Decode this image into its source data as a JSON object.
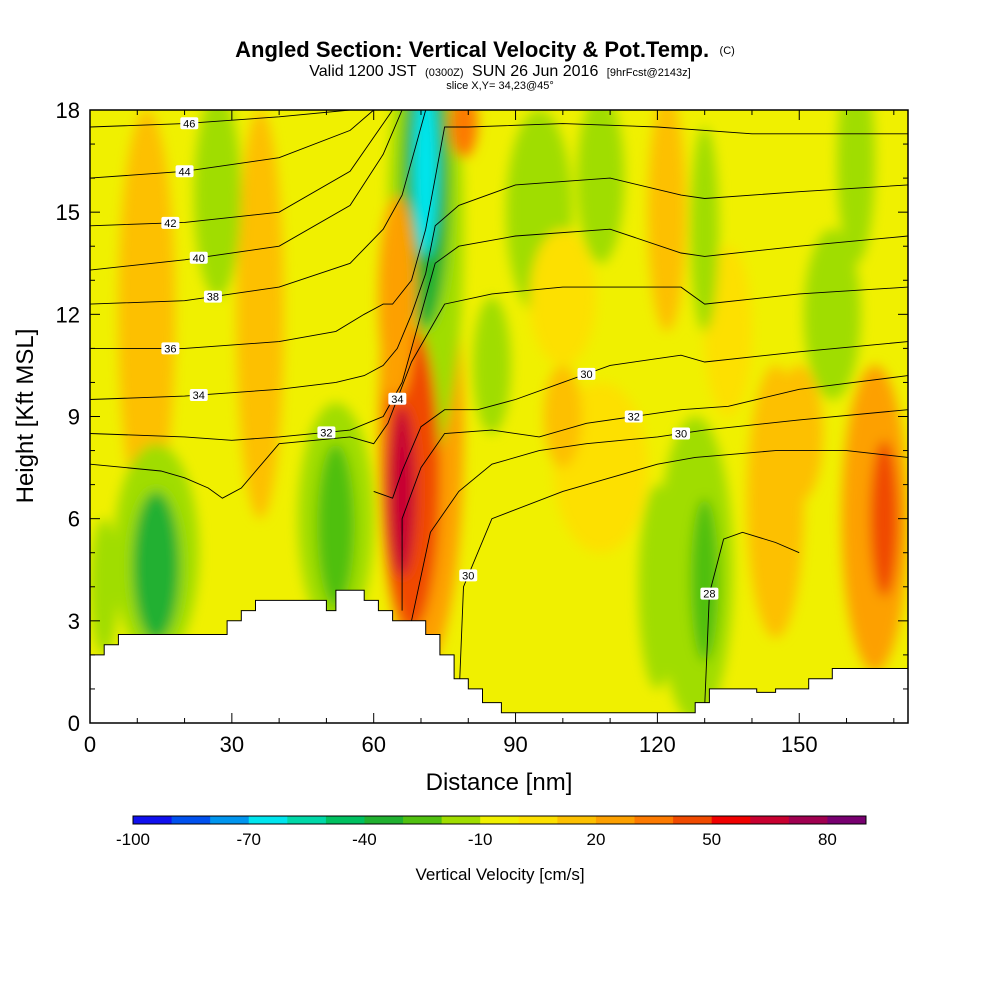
{
  "title": {
    "main": "Angled Section: Vertical Velocity & Pot.Temp.",
    "main_unit": "(C)",
    "valid_prefix": "Valid 1200 JST",
    "valid_z": "(0300Z)",
    "valid_date": "SUN 26 Jun 2016",
    "forecast": "[9hrFcst@2143z]",
    "slice": "slice X,Y= 34,23@45°"
  },
  "chart_data": {
    "type": "heatmap",
    "xlabel": "Distance [nm]",
    "ylabel": "Height [Kft MSL]",
    "xlim": [
      0,
      173
    ],
    "ylim": [
      0,
      18
    ],
    "x_ticks": [
      0,
      30,
      60,
      90,
      120,
      150
    ],
    "y_ticks": [
      0,
      3,
      6,
      9,
      12,
      15,
      18
    ],
    "terrain": [
      [
        0,
        2.0
      ],
      [
        3,
        2.0
      ],
      [
        3,
        2.3
      ],
      [
        6,
        2.3
      ],
      [
        6,
        2.6
      ],
      [
        29,
        2.6
      ],
      [
        29,
        3.0
      ],
      [
        32,
        3.0
      ],
      [
        32,
        3.3
      ],
      [
        35,
        3.3
      ],
      [
        35,
        3.6
      ],
      [
        50,
        3.6
      ],
      [
        50,
        3.3
      ],
      [
        52,
        3.3
      ],
      [
        52,
        3.9
      ],
      [
        58,
        3.9
      ],
      [
        58,
        3.6
      ],
      [
        61,
        3.6
      ],
      [
        61,
        3.3
      ],
      [
        64,
        3.3
      ],
      [
        64,
        3.0
      ],
      [
        71,
        3.0
      ],
      [
        71,
        2.6
      ],
      [
        74,
        2.6
      ],
      [
        74,
        2.0
      ],
      [
        77,
        2.0
      ],
      [
        77,
        1.3
      ],
      [
        80,
        1.3
      ],
      [
        80,
        1.0
      ],
      [
        83,
        1.0
      ],
      [
        83,
        0.6
      ],
      [
        87,
        0.6
      ],
      [
        87,
        0.3
      ],
      [
        128,
        0.3
      ],
      [
        128,
        0.6
      ],
      [
        131,
        0.6
      ],
      [
        131,
        1.0
      ],
      [
        141,
        1.0
      ],
      [
        141,
        0.9
      ],
      [
        145,
        0.9
      ],
      [
        145,
        1.0
      ],
      [
        152,
        1.0
      ],
      [
        152,
        1.3
      ],
      [
        157,
        1.3
      ],
      [
        157,
        1.6
      ],
      [
        173,
        1.6
      ]
    ],
    "vertical_velocity_features": [
      {
        "x": 66,
        "y": 6.8,
        "rx": 3,
        "ry": 2.5,
        "value": 60
      },
      {
        "x": 68,
        "y": 7.2,
        "rx": 6,
        "ry": 4.5,
        "value": 45
      },
      {
        "x": 70,
        "y": 8.5,
        "rx": 9,
        "ry": 7,
        "value": 25
      },
      {
        "x": 65,
        "y": 12.5,
        "rx": 4,
        "ry": 3,
        "value": 25
      },
      {
        "x": 71,
        "y": 16.3,
        "rx": 2.5,
        "ry": 2.6,
        "value": -70
      },
      {
        "x": 71,
        "y": 15.8,
        "rx": 5,
        "ry": 4.2,
        "value": -40
      },
      {
        "x": 71,
        "y": 14.5,
        "rx": 8,
        "ry": 7,
        "value": -15
      },
      {
        "x": 79,
        "y": 17.6,
        "rx": 3,
        "ry": 1,
        "value": 35
      },
      {
        "x": 14,
        "y": 4.6,
        "rx": 5,
        "ry": 2.2,
        "value": -35
      },
      {
        "x": 14,
        "y": 5.0,
        "rx": 9,
        "ry": 3.2,
        "value": -20
      },
      {
        "x": 52,
        "y": 5.8,
        "rx": 4,
        "ry": 2.4,
        "value": -30
      },
      {
        "x": 52,
        "y": 6.0,
        "rx": 8,
        "ry": 3.4,
        "value": -15
      },
      {
        "x": 130,
        "y": 4.2,
        "rx": 3,
        "ry": 2.4,
        "value": -30
      },
      {
        "x": 128,
        "y": 4.5,
        "rx": 8,
        "ry": 4.5,
        "value": -15
      },
      {
        "x": 168,
        "y": 6.0,
        "rx": 3,
        "ry": 2.3,
        "value": 45
      },
      {
        "x": 166,
        "y": 6.0,
        "rx": 7,
        "ry": 4.5,
        "value": 25
      },
      {
        "x": 145,
        "y": 6.5,
        "rx": 6,
        "ry": 4,
        "value": 18
      },
      {
        "x": 27,
        "y": 15.5,
        "rx": 5,
        "ry": 3,
        "value": -20
      },
      {
        "x": 12,
        "y": 12,
        "rx": 6,
        "ry": 6,
        "value": 12
      },
      {
        "x": 36,
        "y": 12,
        "rx": 5,
        "ry": 6,
        "value": 12
      },
      {
        "x": 95,
        "y": 15,
        "rx": 7,
        "ry": 3,
        "value": -12
      },
      {
        "x": 108,
        "y": 16,
        "rx": 5,
        "ry": 2.5,
        "value": -12
      },
      {
        "x": 122,
        "y": 15,
        "rx": 4,
        "ry": 3.5,
        "value": 12
      },
      {
        "x": 130,
        "y": 14.5,
        "rx": 3,
        "ry": 3,
        "value": -15
      },
      {
        "x": 157,
        "y": 12,
        "rx": 6,
        "ry": 2.5,
        "value": -15
      },
      {
        "x": 162,
        "y": 16.5,
        "rx": 4,
        "ry": 3,
        "value": -12
      },
      {
        "x": 120,
        "y": 4,
        "rx": 4,
        "ry": 3,
        "value": -12
      },
      {
        "x": 100,
        "y": 9,
        "rx": 4,
        "ry": 1.5,
        "value": 12
      },
      {
        "x": 85,
        "y": 10.5,
        "rx": 4,
        "ry": 2,
        "value": -12
      },
      {
        "x": 108,
        "y": 7.5,
        "rx": 10,
        "ry": 2.5,
        "value": 8
      },
      {
        "x": 150,
        "y": 8.5,
        "rx": 5,
        "ry": 2,
        "value": 10
      },
      {
        "x": 135,
        "y": 11.5,
        "rx": 5,
        "ry": 2.5,
        "value": 8
      },
      {
        "x": 3,
        "y": 4,
        "rx": 3,
        "ry": 2,
        "value": -15
      },
      {
        "x": 100,
        "y": 12.5,
        "rx": 7,
        "ry": 2,
        "value": 8
      }
    ],
    "theta_contours": [
      {
        "level": 46,
        "points": [
          [
            0,
            17.5
          ],
          [
            20,
            17.6
          ],
          [
            40,
            17.8
          ],
          [
            55,
            18.0
          ]
        ],
        "label_x": 21
      },
      {
        "level": 44,
        "points": [
          [
            0,
            16.0
          ],
          [
            20,
            16.2
          ],
          [
            40,
            16.6
          ],
          [
            55,
            17.4
          ],
          [
            60,
            18.0
          ]
        ],
        "label_x": 20
      },
      {
        "level": 42,
        "points": [
          [
            0,
            14.6
          ],
          [
            20,
            14.7
          ],
          [
            40,
            15.0
          ],
          [
            55,
            16.2
          ],
          [
            62,
            17.6
          ],
          [
            64,
            18.0
          ]
        ],
        "label_x": 17
      },
      {
        "level": 40,
        "points": [
          [
            0,
            13.3
          ],
          [
            20,
            13.6
          ],
          [
            40,
            14.0
          ],
          [
            55,
            15.2
          ],
          [
            62,
            16.7
          ],
          [
            66,
            18.0
          ]
        ],
        "label_x": 23
      },
      {
        "level": 38,
        "points": [
          [
            0,
            12.3
          ],
          [
            20,
            12.4
          ],
          [
            40,
            12.8
          ],
          [
            55,
            13.5
          ],
          [
            62,
            14.5
          ],
          [
            66,
            15.5
          ],
          [
            69,
            17.0
          ],
          [
            71,
            18.0
          ]
        ],
        "label_x": 26
      },
      {
        "level": 36,
        "points": [
          [
            0,
            11.0
          ],
          [
            20,
            11.0
          ],
          [
            40,
            11.2
          ],
          [
            52,
            11.5
          ],
          [
            58,
            12.0
          ],
          [
            62,
            12.3
          ],
          [
            64,
            12.3
          ],
          [
            68,
            13.0
          ],
          [
            71,
            14.5
          ],
          [
            73,
            16.0
          ],
          [
            75,
            17.5
          ],
          [
            80,
            17.5
          ],
          [
            100,
            17.6
          ],
          [
            120,
            17.5
          ],
          [
            140,
            17.3
          ],
          [
            173,
            17.3
          ]
        ],
        "label_x": 17
      },
      {
        "level": 34,
        "points": [
          [
            0,
            9.5
          ],
          [
            20,
            9.6
          ],
          [
            40,
            9.8
          ],
          [
            52,
            10.0
          ],
          [
            58,
            10.2
          ],
          [
            62,
            10.5
          ],
          [
            65,
            11.0
          ],
          [
            68,
            12.0
          ],
          [
            71,
            13.2
          ],
          [
            73,
            14.6
          ],
          [
            78,
            15.2
          ],
          [
            90,
            15.8
          ],
          [
            110,
            16.0
          ],
          [
            125,
            15.5
          ],
          [
            130,
            15.4
          ],
          [
            150,
            15.6
          ],
          [
            173,
            15.8
          ]
        ],
        "label_x": 23
      },
      {
        "level": 32,
        "points": [
          [
            0,
            8.5
          ],
          [
            20,
            8.4
          ],
          [
            30,
            8.3
          ],
          [
            40,
            8.4
          ],
          [
            55,
            8.6
          ],
          [
            62,
            9.0
          ],
          [
            66,
            10.0
          ],
          [
            70,
            12.0
          ],
          [
            73,
            13.5
          ],
          [
            78,
            14.0
          ],
          [
            90,
            14.3
          ],
          [
            110,
            14.5
          ],
          [
            125,
            13.8
          ],
          [
            130,
            13.7
          ],
          [
            150,
            14.0
          ],
          [
            173,
            14.3
          ]
        ],
        "label_x": 50
      },
      {
        "level": 34,
        "points": [
          [
            0,
            7.6
          ],
          [
            15,
            7.4
          ],
          [
            20,
            7.2
          ],
          [
            25,
            6.9
          ],
          [
            28,
            6.6
          ],
          [
            32,
            6.9
          ],
          [
            40,
            8.2
          ],
          [
            55,
            8.4
          ],
          [
            60,
            8.2
          ],
          [
            63,
            8.8
          ],
          [
            68,
            10.6
          ],
          [
            75,
            12.3
          ],
          [
            85,
            12.6
          ],
          [
            100,
            12.8
          ],
          [
            125,
            12.8
          ],
          [
            130,
            12.3
          ],
          [
            150,
            12.6
          ],
          [
            173,
            12.8
          ]
        ],
        "label_x": 65
      },
      {
        "level": 30,
        "points": [
          [
            60,
            6.8
          ],
          [
            64,
            6.6
          ],
          [
            66,
            7.4
          ],
          [
            70,
            8.7
          ],
          [
            75,
            9.2
          ],
          [
            82,
            9.2
          ],
          [
            90,
            9.5
          ],
          [
            100,
            10.0
          ],
          [
            110,
            10.5
          ],
          [
            125,
            10.8
          ],
          [
            130,
            10.6
          ],
          [
            150,
            10.9
          ],
          [
            173,
            11.2
          ]
        ],
        "label_x": 105
      },
      {
        "level": 32,
        "points": [
          [
            66,
            3.3
          ],
          [
            66,
            6.0
          ],
          [
            70,
            7.5
          ],
          [
            75,
            8.5
          ],
          [
            85,
            8.6
          ],
          [
            95,
            8.4
          ],
          [
            105,
            8.8
          ],
          [
            115,
            9.0
          ],
          [
            125,
            9.2
          ],
          [
            135,
            9.3
          ],
          [
            150,
            9.8
          ],
          [
            173,
            10.2
          ]
        ],
        "label_x": 115
      },
      {
        "level": 30,
        "points": [
          [
            68,
            3.0
          ],
          [
            72,
            5.6
          ],
          [
            78,
            6.8
          ],
          [
            85,
            7.6
          ],
          [
            95,
            8.0
          ],
          [
            105,
            8.2
          ],
          [
            120,
            8.4
          ],
          [
            130,
            8.6
          ],
          [
            150,
            8.9
          ],
          [
            173,
            9.2
          ]
        ],
        "label_x": 125
      },
      {
        "level": 30,
        "points": [
          [
            78,
            0.6
          ],
          [
            79,
            4.0
          ],
          [
            85,
            6.0
          ],
          [
            100,
            6.8
          ],
          [
            110,
            7.2
          ],
          [
            120,
            7.6
          ],
          [
            128,
            7.8
          ],
          [
            145,
            8.0
          ],
          [
            160,
            8.0
          ],
          [
            173,
            7.8
          ]
        ],
        "label_x": 80
      },
      {
        "level": 28,
        "points": [
          [
            130,
            0.5
          ],
          [
            131,
            3.8
          ],
          [
            134,
            5.4
          ],
          [
            138,
            5.6
          ],
          [
            145,
            5.3
          ],
          [
            150,
            5.0
          ]
        ],
        "label_x": 131
      }
    ],
    "colorbar": {
      "label": "Vertical Velocity [cm/s]",
      "min": -100,
      "max": 90,
      "step": 10,
      "tick_values": [
        -100,
        -70,
        -40,
        -10,
        20,
        50,
        80
      ],
      "tick_labels": [
        "-100",
        "-70",
        "-40",
        "-10",
        "20",
        "50",
        "80"
      ],
      "colors": [
        "#1010ee",
        "#0050ee",
        "#0095ee",
        "#00e5ee",
        "#00d8a8",
        "#00c060",
        "#20b030",
        "#50c010",
        "#a0dd00",
        "#f0f000",
        "#fde000",
        "#fdc000",
        "#fda000",
        "#fd7a00",
        "#f04a00",
        "#f00000",
        "#c80030",
        "#a00050",
        "#780070"
      ]
    }
  }
}
